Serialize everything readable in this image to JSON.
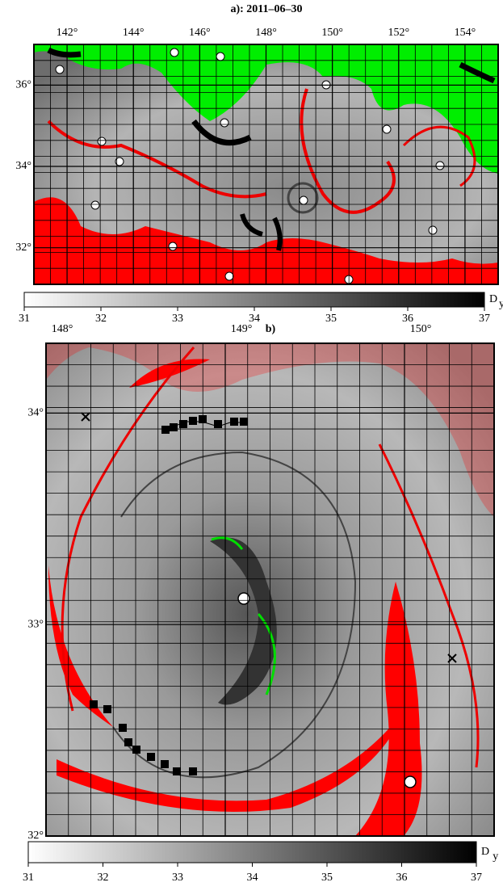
{
  "panels": [
    {
      "title": "a): 2011–06–30",
      "xlim": [
        141,
        155
      ],
      "xticks": [
        {
          "value": 142,
          "label": "142°"
        },
        {
          "value": 144,
          "label": "144°"
        },
        {
          "value": 146,
          "label": "146°"
        },
        {
          "value": 148,
          "label": "148°"
        },
        {
          "value": 150,
          "label": "150°"
        },
        {
          "value": 152,
          "label": "152°"
        },
        {
          "value": 154,
          "label": "154°"
        }
      ],
      "ylim": [
        31.1,
        37
      ],
      "yticks": [
        {
          "value": 32,
          "label": "32°"
        },
        {
          "value": 34,
          "label": "34°"
        },
        {
          "value": 36,
          "label": "36°"
        }
      ]
    },
    {
      "title": "b)",
      "xlim": [
        148,
        150.5
      ],
      "xticks": [
        {
          "value": 148,
          "label": "148°"
        },
        {
          "value": 149,
          "label": "149°"
        },
        {
          "value": 150,
          "label": "150°"
        }
      ],
      "ylim": [
        32,
        34.33
      ],
      "yticks": [
        {
          "value": 32,
          "label": "32°"
        },
        {
          "value": 33,
          "label": "33°"
        },
        {
          "value": 34,
          "label": "34°"
        }
      ]
    }
  ],
  "colorbars": [
    {
      "label": "D",
      "label_sub": "y",
      "lim": [
        31,
        37
      ],
      "ticks": [
        31,
        32,
        33,
        34,
        35,
        36,
        37
      ]
    },
    {
      "label": "D",
      "label_sub": "y",
      "lim": [
        31,
        37
      ],
      "ticks": [
        31,
        32,
        33,
        34,
        35,
        36,
        37
      ]
    }
  ]
}
